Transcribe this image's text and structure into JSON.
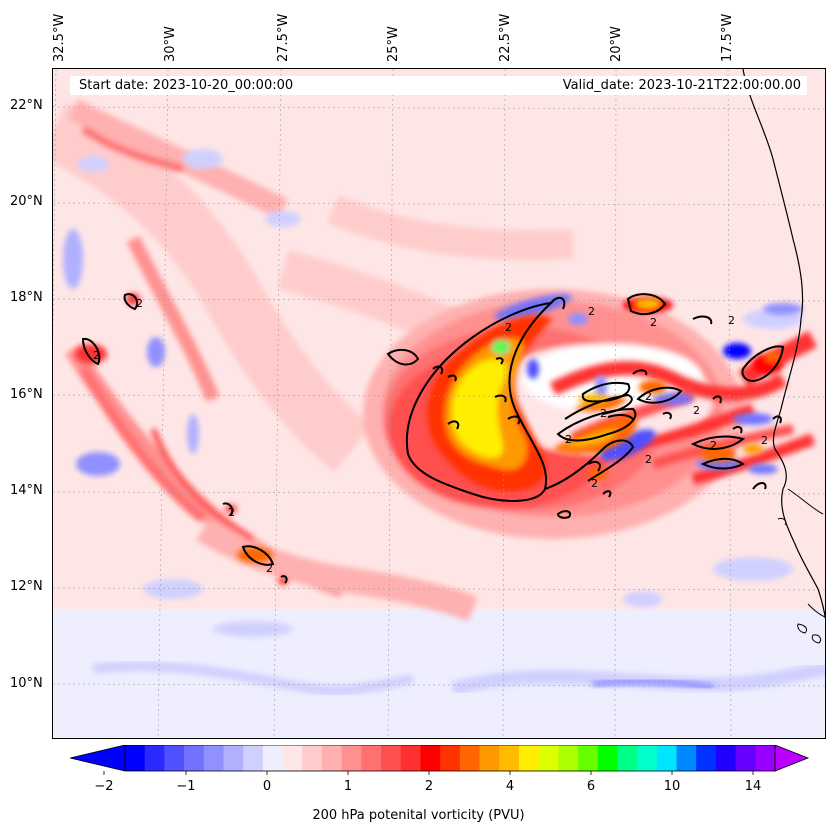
{
  "map": {
    "lon_labels": [
      "32.5°W",
      "30°W",
      "27.5°W",
      "25°W",
      "22.5°W",
      "20°W",
      "17.5°W"
    ],
    "lat_labels": [
      "22°N",
      "20°N",
      "18°N",
      "16°N",
      "14°N",
      "12°N",
      "10°N"
    ],
    "start_date": "Start date: 2023-10-20_00:00:00",
    "valid_date": "Valid_date: 2023-10-21T22:00:00.00",
    "contour_label": "2"
  },
  "colorbar": {
    "ticks": [
      "−2",
      "−1",
      "0",
      "1",
      "2",
      "4",
      "6",
      "10",
      "14"
    ],
    "label": "200 hPa potenital vorticity (PVU)",
    "colors": [
      "#0000ff",
      "#2a2aff",
      "#5050ff",
      "#7272ff",
      "#9090ff",
      "#b0b0ff",
      "#d0d0ff",
      "#eeeeff",
      "#ffe6e6",
      "#ffcccc",
      "#ffb0b0",
      "#ff9090",
      "#ff7070",
      "#ff5050",
      "#ff3030",
      "#ff0000",
      "#ff3300",
      "#ff6600",
      "#ff9900",
      "#ffbb00",
      "#ffee00",
      "#ddff00",
      "#aaff00",
      "#66ff00",
      "#00ff00",
      "#00ff88",
      "#00ffcc",
      "#00e5ff",
      "#0088ff",
      "#0033ff",
      "#2200ff",
      "#6600ff",
      "#9900ff"
    ],
    "under_color": "#0000ff",
    "over_color": "#bb00ff"
  }
}
